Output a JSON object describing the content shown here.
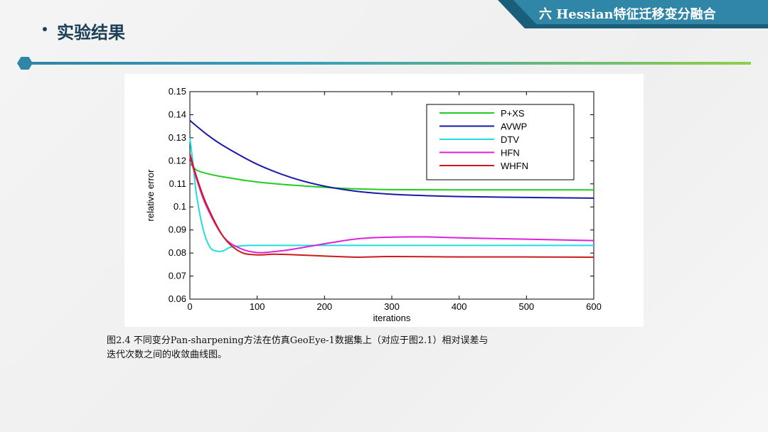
{
  "header": {
    "banner_text": "六  Hessian特征迁移变分融合",
    "section_title": "实验结果",
    "colors": {
      "banner_front": "#2f86a6",
      "banner_back": "#1a5f7a",
      "title": "#1b3f57"
    }
  },
  "caption": {
    "line1": "图2.4  不同变分Pan-sharpening方法在仿真GeoEye-1数据集上（对应于图2.1）相对误差与",
    "line2": "迭代次数之间的收敛曲线图。"
  },
  "chart_data": {
    "type": "line",
    "xlabel": "iterations",
    "ylabel": "relative error",
    "xlim": [
      0,
      600
    ],
    "ylim": [
      0.06,
      0.15
    ],
    "xticks": [
      0,
      100,
      200,
      300,
      400,
      500,
      600
    ],
    "yticks": [
      0.06,
      0.07,
      0.08,
      0.09,
      0.1,
      0.11,
      0.12,
      0.13,
      0.14,
      0.15
    ],
    "ytick_labels": [
      "0.06",
      "0.07",
      "0.08",
      "0.09",
      "0.1",
      "0.11",
      "0.12",
      "0.13",
      "0.14",
      "0.15"
    ],
    "legend_position": "top-right",
    "grid": false,
    "series": [
      {
        "name": "P+XS",
        "color": "#22cc22",
        "x": [
          0,
          10,
          25,
          50,
          100,
          150,
          200,
          250,
          300,
          400,
          500,
          600
        ],
        "y": [
          0.119,
          0.116,
          0.1145,
          0.113,
          0.1108,
          0.1095,
          0.1085,
          0.1078,
          0.1075,
          0.1074,
          0.1074,
          0.1074
        ]
      },
      {
        "name": "AVWP",
        "color": "#1a1aaa",
        "x": [
          0,
          25,
          50,
          100,
          150,
          200,
          250,
          300,
          350,
          400,
          500,
          600
        ],
        "y": [
          0.1375,
          0.1315,
          0.1265,
          0.1185,
          0.1128,
          0.109,
          0.1067,
          0.1055,
          0.1049,
          0.1045,
          0.1041,
          0.1038
        ]
      },
      {
        "name": "DTV",
        "color": "#22dddd",
        "x": [
          0,
          5,
          10,
          20,
          30,
          40,
          50,
          60,
          80,
          100,
          200,
          300,
          400,
          500,
          600
        ],
        "y": [
          0.13,
          0.118,
          0.105,
          0.09,
          0.0825,
          0.0808,
          0.081,
          0.0825,
          0.0832,
          0.0833,
          0.0833,
          0.0833,
          0.0833,
          0.0833,
          0.0833
        ]
      },
      {
        "name": "HFN",
        "color": "#dd22dd",
        "x": [
          0,
          10,
          25,
          50,
          75,
          100,
          125,
          150,
          200,
          250,
          300,
          350,
          400,
          500,
          600
        ],
        "y": [
          0.122,
          0.112,
          0.1,
          0.087,
          0.082,
          0.0802,
          0.0806,
          0.0815,
          0.084,
          0.0862,
          0.0869,
          0.087,
          0.0866,
          0.086,
          0.0854
        ]
      },
      {
        "name": "WHFN",
        "color": "#cc1a1a",
        "x": [
          0,
          10,
          25,
          50,
          75,
          100,
          125,
          150,
          200,
          250,
          300,
          400,
          500,
          600
        ],
        "y": [
          0.123,
          0.113,
          0.101,
          0.087,
          0.0805,
          0.0792,
          0.0795,
          0.0793,
          0.0787,
          0.0782,
          0.0785,
          0.0783,
          0.0783,
          0.0782
        ]
      }
    ]
  }
}
